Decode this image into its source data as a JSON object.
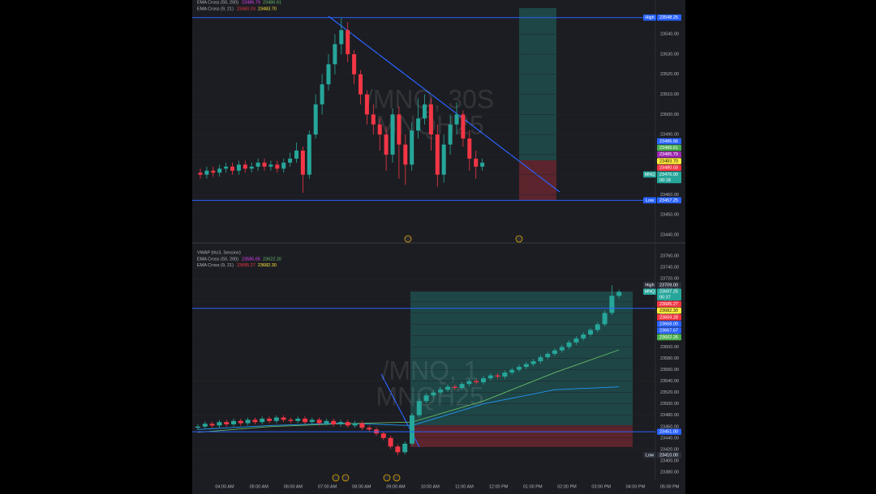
{
  "chart_data": [
    {
      "type": "candlestick",
      "up_color": "#26a69a",
      "down_color": "#f23645",
      "ylim": [
        23436,
        23557
      ],
      "yticks": [
        {
          "value": 23440,
          "label": "23440.00"
        },
        {
          "value": 23450,
          "label": "23450.00"
        },
        {
          "value": 23460,
          "label": "23460.00"
        },
        {
          "value": 23470,
          "label": "23470.00"
        },
        {
          "value": 23480,
          "label": "23480.00"
        },
        {
          "value": 23490,
          "label": "23490.00"
        },
        {
          "value": 23500,
          "label": "23500.00"
        },
        {
          "value": 23510,
          "label": "23510.00"
        },
        {
          "value": 23520,
          "label": "23520.00"
        },
        {
          "value": 23530,
          "label": "23530.00"
        },
        {
          "value": 23540,
          "label": "23540.00"
        }
      ],
      "watermark": [
        "/MNQ, 30S",
        "MNQH25"
      ],
      "legend": [
        {
          "name": "EMA Cross (50, 200)",
          "values": [
            {
              "value": 23486.79,
              "color": "#e040fb"
            },
            {
              "value": 23486.61,
              "color": "#66bb6a"
            }
          ]
        },
        {
          "name": "EMA Cross (9, 21)",
          "values": [
            {
              "value": 23480.03,
              "color": "#f23645"
            },
            {
              "value": {
                "value": 23483.7,
                "label": "23483.70"
              },
              "color": "#ffeb3b"
            }
          ]
        }
      ],
      "open": [
        23471,
        23470,
        23472,
        23471,
        23473,
        23474,
        23472,
        23475,
        23473,
        23474,
        23476,
        23474,
        23475,
        23473,
        23476,
        23478,
        23482,
        23470,
        23490,
        23505,
        23515,
        23525,
        23535,
        23542,
        23530,
        23520,
        23510,
        23500,
        23495,
        23490,
        23480,
        23500,
        23485,
        23475,
        23492,
        23498,
        23505,
        23490,
        23470,
        23485,
        23495,
        23500,
        23488,
        23478,
        23474
      ],
      "high": [
        23473,
        23474,
        23474,
        23475,
        23476,
        23476,
        23477,
        23477,
        23476,
        23478,
        23478,
        23477,
        23477,
        23478,
        23481,
        23486,
        23484,
        23492,
        23510,
        23520,
        23530,
        23540,
        23548,
        23546,
        23532,
        23522,
        23512,
        23505,
        23498,
        23494,
        23503,
        23504,
        23490,
        23496,
        23508,
        23510,
        23508,
        23495,
        23490,
        23500,
        23506,
        23502,
        23492,
        23482,
        23478
      ],
      "low": [
        23468,
        23468,
        23469,
        23469,
        23471,
        23470,
        23470,
        23471,
        23471,
        23472,
        23472,
        23472,
        23471,
        23471,
        23474,
        23476,
        23461,
        23468,
        23488,
        23500,
        23512,
        23520,
        23530,
        23526,
        23515,
        23505,
        23495,
        23490,
        23482,
        23472,
        23476,
        23468,
        23465,
        23472,
        23488,
        23495,
        23482,
        23464,
        23466,
        23480,
        23490,
        23484,
        23472,
        23468,
        23472
      ],
      "close": [
        23470,
        23472,
        23471,
        23473,
        23474,
        23472,
        23475,
        23473,
        23474,
        23476,
        23474,
        23475,
        23473,
        23476,
        23478,
        23482,
        23470,
        23490,
        23505,
        23515,
        23525,
        23535,
        23542,
        23530,
        23520,
        23510,
        23500,
        23495,
        23490,
        23480,
        23500,
        23485,
        23475,
        23492,
        23498,
        23505,
        23490,
        23470,
        23485,
        23495,
        23500,
        23488,
        23478,
        23474,
        23476
      ],
      "badges": [
        {
          "text": "High",
          "price": 23548.25,
          "color": "#2962ff",
          "line": true
        },
        {
          "price": 23486.66,
          "color": "#2962ff"
        },
        {
          "price": 23486.61,
          "color": "#4caf50"
        },
        {
          "price": 23485.79,
          "color": "#9c27b0"
        },
        {
          "price": {
            "value": 23483.7,
            "label": "23483.70"
          },
          "color": "#ffeb3b"
        },
        {
          "price": 23480.03,
          "color": "#f23645"
        },
        {
          "text": "MNQ",
          "price": {
            "value": 23476,
            "label": "23476.00"
          },
          "sub": "00:18",
          "color": "#26a69a"
        },
        {
          "text": "Low",
          "price": 23457.25,
          "color": "#2962ff",
          "line": true
        }
      ]
    },
    {
      "type": "candlestick",
      "up_color": "#26a69a",
      "down_color": "#f23645",
      "ylim": [
        23370,
        23783
      ],
      "yticks": [
        {
          "value": 23380,
          "label": "23380.00"
        },
        {
          "value": 23400,
          "label": "23400.00"
        },
        {
          "value": 23420,
          "label": "23420.00"
        },
        {
          "value": 23440,
          "label": "23440.00"
        },
        {
          "value": 23460,
          "label": "23460.00"
        },
        {
          "value": 23480,
          "label": "23480.00"
        },
        {
          "value": 23500,
          "label": "23500.00"
        },
        {
          "value": 23520,
          "label": "23520.00"
        },
        {
          "value": 23540,
          "label": "23540.00"
        },
        {
          "value": 23560,
          "label": "23560.00"
        },
        {
          "value": 23580,
          "label": "23580.00"
        },
        {
          "value": 23600,
          "label": "23600.00"
        },
        {
          "value": 23620,
          "label": "23620.00"
        },
        {
          "value": 23640,
          "label": "23640.00"
        },
        {
          "value": 23660,
          "label": "23660.00"
        },
        {
          "value": 23680,
          "label": "23680.00"
        },
        {
          "value": 23700,
          "label": "23700.00"
        },
        {
          "value": 23720,
          "label": "23720.00"
        },
        {
          "value": 23740,
          "label": "23740.00"
        },
        {
          "value": 23760,
          "label": "23760.00"
        }
      ],
      "watermark": [
        "/MNQ, 1",
        "MNQH25"
      ],
      "legend": [
        {
          "name": "VWAP (hlc3, Session)",
          "values": []
        },
        {
          "name": "EMA Cross (50, 200)",
          "values": [
            {
              "value": 23585.65,
              "color": "#e040fb"
            },
            {
              "value": {
                "value": 23622.2,
                "label": "23622.20"
              },
              "color": "#66bb6a"
            }
          ]
        },
        {
          "name": "EMA Cross (9, 21)",
          "values": [
            {
              "value": 23685.27,
              "color": "#f23645"
            },
            {
              "value": {
                "value": 23682.3,
                "label": "23682.30"
              },
              "color": "#ffeb3b"
            }
          ]
        }
      ],
      "open": [
        23458,
        23460,
        23465,
        23462,
        23468,
        23464,
        23470,
        23466,
        23472,
        23468,
        23474,
        23470,
        23476,
        23472,
        23470,
        23474,
        23468,
        23472,
        23466,
        23470,
        23464,
        23468,
        23462,
        23466,
        23458,
        23455,
        23448,
        23440,
        23425,
        23415,
        23430,
        23480,
        23505,
        23515,
        23520,
        23525,
        23530,
        23528,
        23535,
        23540,
        23538,
        23545,
        23550,
        23548,
        23555,
        23560,
        23565,
        23570,
        23575,
        23582,
        23588,
        23594,
        23600,
        23608,
        23615,
        23622,
        23630,
        23640,
        23660,
        23690
      ],
      "high": [
        23464,
        23469,
        23469,
        23472,
        23472,
        23474,
        23474,
        23476,
        23476,
        23478,
        23478,
        23480,
        23480,
        23476,
        23478,
        23478,
        23476,
        23476,
        23474,
        23474,
        23472,
        23472,
        23470,
        23470,
        23462,
        23459,
        23452,
        23444,
        23429,
        23434,
        23484,
        23509,
        23519,
        23524,
        23529,
        23534,
        23534,
        23539,
        23544,
        23544,
        23549,
        23554,
        23554,
        23559,
        23564,
        23569,
        23574,
        23579,
        23586,
        23592,
        23598,
        23604,
        23612,
        23619,
        23626,
        23634,
        23644,
        23664,
        23709,
        23701
      ],
      "low": [
        23454,
        23456,
        23458,
        23458,
        23460,
        23460,
        23462,
        23462,
        23464,
        23464,
        23466,
        23466,
        23468,
        23466,
        23466,
        23464,
        23464,
        23462,
        23462,
        23460,
        23460,
        23458,
        23458,
        23454,
        23451,
        23444,
        23436,
        23421,
        23410,
        23411,
        23426,
        23476,
        23501,
        23511,
        23516,
        23521,
        23524,
        23524,
        23531,
        23534,
        23534,
        23541,
        23544,
        23544,
        23551,
        23556,
        23561,
        23566,
        23571,
        23578,
        23584,
        23590,
        23596,
        23604,
        23611,
        23618,
        23626,
        23636,
        23656,
        23686
      ],
      "close": [
        23460,
        23465,
        23462,
        23468,
        23464,
        23470,
        23466,
        23472,
        23468,
        23474,
        23470,
        23476,
        23472,
        23470,
        23474,
        23468,
        23472,
        23466,
        23470,
        23464,
        23468,
        23462,
        23466,
        23458,
        23455,
        23448,
        23440,
        23425,
        23415,
        23430,
        23480,
        23505,
        23515,
        23520,
        23525,
        23530,
        23528,
        23535,
        23540,
        23538,
        23545,
        23550,
        23548,
        23555,
        23560,
        23565,
        23570,
        23575,
        23582,
        23588,
        23594,
        23600,
        23608,
        23615,
        23622,
        23630,
        23640,
        23660,
        23690,
        23697
      ],
      "lines": [
        {
          "name": "VWAP (hlc3, Session)",
          "color": "#2196f3",
          "x": [
            0,
            10,
            20,
            30,
            40,
            50,
            59
          ],
          "values": [
            23455,
            23462,
            23466,
            23462,
            23500,
            23525,
            23530
          ]
        },
        {
          "name": "EMA Cross (50, 200)",
          "color": "#66bb6a",
          "x": [
            0,
            10,
            20,
            30,
            40,
            50,
            59
          ],
          "values": [
            23450,
            23460,
            23465,
            23468,
            23505,
            23555,
            23595
          ]
        }
      ],
      "badges": [
        {
          "text": "High",
          "price": {
            "value": 23709,
            "label": "23709.00"
          },
          "color": "#2a2e39"
        },
        {
          "text": "MNQ",
          "price": 23697.25,
          "sub": "00:37",
          "color": "#26a69a"
        },
        {
          "price": 23685.27,
          "color": "#f23645"
        },
        {
          "price": {
            "value": 23682.3,
            "label": "23682.30"
          },
          "color": "#ffeb3b"
        },
        {
          "price": 23669.28,
          "color": "#f23645"
        },
        {
          "price": {
            "value": 23668,
            "label": "23668.00"
          },
          "color": "#2962ff",
          "line": true
        },
        {
          "price": 23667.67,
          "color": "#2962ff"
        },
        {
          "price": 23662.26,
          "color": "#4caf50"
        },
        {
          "price": {
            "value": 23451,
            "label": "23451.00"
          },
          "color": "#2962ff",
          "line": true
        },
        {
          "text": "Low",
          "price": {
            "value": 23410,
            "label": "23410.00"
          },
          "color": "#2a2e39"
        }
      ]
    }
  ],
  "x_axis": {
    "labels": [
      "04:00 AM",
      "05:00 AM",
      "06:00 AM",
      "07:00 AM",
      "08:00 AM",
      "09:00 AM",
      "10:00 AM",
      "11:00 AM",
      "12:00 PM",
      "01:00 PM",
      "02:00 PM",
      "03:00 PM",
      "04:00 PM",
      "05:00 PM"
    ]
  }
}
